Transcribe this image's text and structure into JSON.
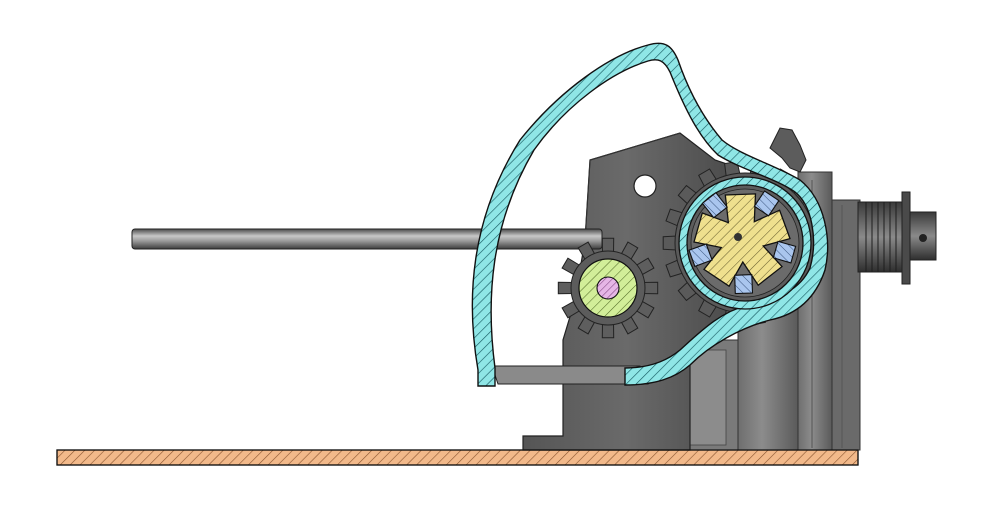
{
  "colors": {
    "background": "#ffffff",
    "frame_dark": "#4a4a4a",
    "frame_mid": "#6b6b6b",
    "rod_light": "#bdbdbd",
    "rod_dark": "#5a5a5a",
    "housing_cyan": "#8fe6e6",
    "housing_hatch": "#1a5f66",
    "rotor_yellow": "#efe08e",
    "rotor_hatch": "#6a6130",
    "vane_blue": "#aac6ee",
    "gear_green": "#d2ee99",
    "shaft_pink": "#e6b6e6",
    "base_plate": "#f2b98a",
    "base_hatch": "#8a5530",
    "outline": "#111111"
  },
  "parts": [
    {
      "name": "base-plate"
    },
    {
      "name": "side-frame"
    },
    {
      "name": "guide-rod"
    },
    {
      "name": "cyan-housing"
    },
    {
      "name": "pinion-gear"
    },
    {
      "name": "drive-gear"
    },
    {
      "name": "rotor"
    },
    {
      "name": "vanes"
    },
    {
      "name": "motor-block"
    },
    {
      "name": "pulley"
    }
  ]
}
